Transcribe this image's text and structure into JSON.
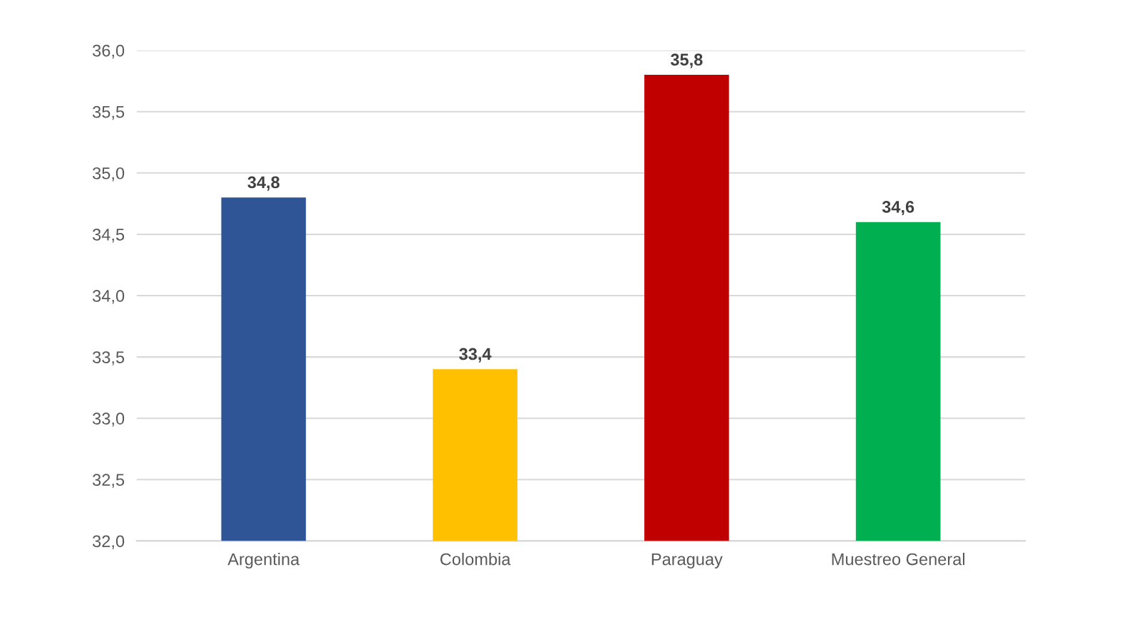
{
  "chart_data": {
    "type": "bar",
    "categories": [
      "Argentina",
      "Colombia",
      "Paraguay",
      "Muestreo General"
    ],
    "values": [
      34.8,
      33.4,
      35.8,
      34.6
    ],
    "colors": [
      "#2f5597",
      "#ffc000",
      "#c00000",
      "#00b050"
    ],
    "value_labels": [
      "34,8",
      "33,4",
      "35,8",
      "34,6"
    ],
    "ylim": [
      32.0,
      36.0
    ],
    "yticks": [
      {
        "value": 32.0,
        "label": "32,0"
      },
      {
        "value": 32.5,
        "label": "32,5"
      },
      {
        "value": 33.0,
        "label": "33,0"
      },
      {
        "value": 33.5,
        "label": "33,5"
      },
      {
        "value": 34.0,
        "label": "34,0"
      },
      {
        "value": 34.5,
        "label": "34,5"
      },
      {
        "value": 35.0,
        "label": "35,0"
      },
      {
        "value": 35.5,
        "label": "35,5"
      },
      {
        "value": 36.0,
        "label": "36,0"
      }
    ],
    "grid": "y"
  }
}
